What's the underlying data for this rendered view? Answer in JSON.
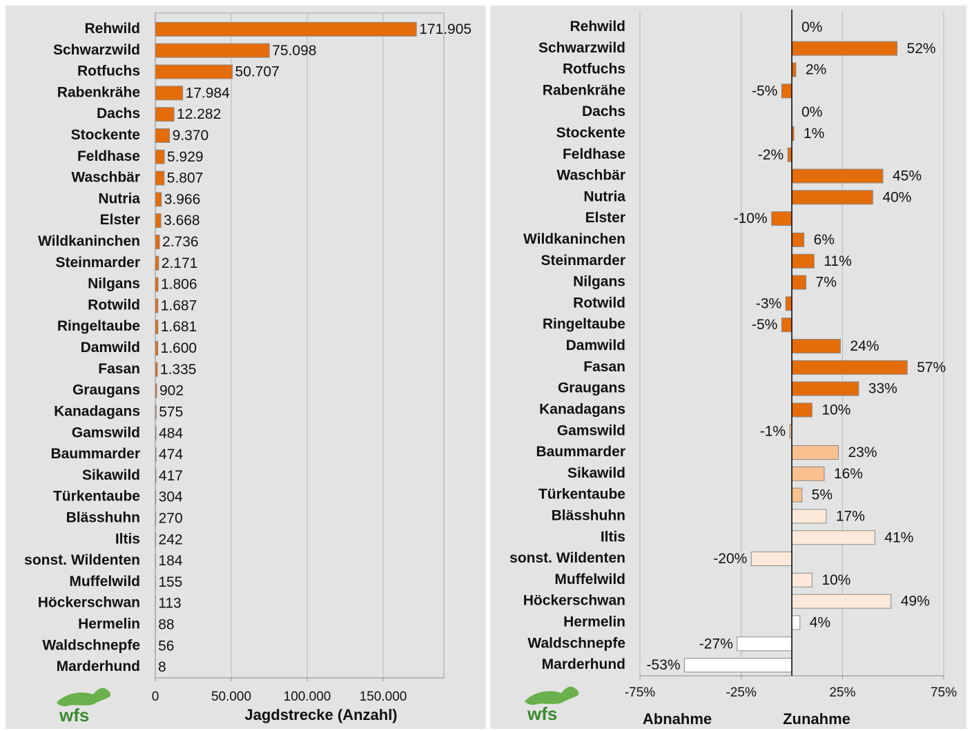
{
  "logo": "wfs",
  "chart_data": [
    {
      "type": "bar",
      "orientation": "horizontal",
      "categories": [
        "Rehwild",
        "Schwarzwild",
        "Rotfuchs",
        "Rabenkrähe",
        "Dachs",
        "Stockente",
        "Feldhase",
        "Waschbär",
        "Nutria",
        "Elster",
        "Wildkaninchen",
        "Steinmarder",
        "Nilgans",
        "Rotwild",
        "Ringeltaube",
        "Damwild",
        "Fasan",
        "Graugans",
        "Kanadagans",
        "Gamswild",
        "Baummarder",
        "Sikawild",
        "Türkentaube",
        "Blässhuhn",
        "Iltis",
        "sonst. Wildenten",
        "Muffelwild",
        "Höckerschwan",
        "Hermelin",
        "Waldschnepfe",
        "Marderhund"
      ],
      "values": [
        171905,
        75098,
        50707,
        17984,
        12282,
        9370,
        5929,
        5807,
        3966,
        3668,
        2736,
        2171,
        1806,
        1687,
        1681,
        1600,
        1335,
        902,
        575,
        484,
        474,
        417,
        304,
        270,
        242,
        184,
        155,
        113,
        88,
        56,
        8
      ],
      "value_labels": [
        "171.905",
        "75.098",
        "50.707",
        "17.984",
        "12.282",
        "9.370",
        "5.929",
        "5.807",
        "3.966",
        "3.668",
        "2.736",
        "2.171",
        "1.806",
        "1.687",
        "1.681",
        "1.600",
        "1.335",
        "902",
        "575",
        "484",
        "474",
        "417",
        "304",
        "270",
        "242",
        "184",
        "155",
        "113",
        "88",
        "56",
        "8"
      ],
      "color": "#e46c0a",
      "xlim": [
        0,
        190000
      ],
      "xticks": [
        0,
        {
          "value": 50000,
          "label": "50.000"
        },
        {
          "value": 100000,
          "label": "100.000"
        },
        {
          "value": 150000,
          "label": "150.000"
        }
      ],
      "xlabel": "Jagdstrecke (Anzahl)",
      "grid": true
    },
    {
      "type": "bar",
      "orientation": "horizontal",
      "categories": [
        "Rehwild",
        "Schwarzwild",
        "Rotfuchs",
        "Rabenkrähe",
        "Dachs",
        "Stockente",
        "Feldhase",
        "Waschbär",
        "Nutria",
        "Elster",
        "Wildkaninchen",
        "Steinmarder",
        "Nilgans",
        "Rotwild",
        "Ringeltaube",
        "Damwild",
        "Fasan",
        "Graugans",
        "Kanadagans",
        "Gamswild",
        "Baummarder",
        "Sikawild",
        "Türkentaube",
        "Blässhuhn",
        "Iltis",
        "sonst. Wildenten",
        "Muffelwild",
        "Höckerschwan",
        "Hermelin",
        "Waldschnepfe",
        "Marderhund"
      ],
      "values": [
        0,
        52,
        2,
        -5,
        0,
        1,
        -2,
        45,
        40,
        -10,
        6,
        11,
        7,
        -3,
        -5,
        24,
        57,
        33,
        10,
        -1,
        23,
        16,
        5,
        17,
        41,
        -20,
        10,
        49,
        4,
        -27,
        -53
      ],
      "value_labels": [
        "0%",
        "52%",
        "2%",
        "-5%",
        "0%",
        "1%",
        "-2%",
        "45%",
        "40%",
        "-10%",
        "6%",
        "11%",
        "7%",
        "-3%",
        "-5%",
        "24%",
        "57%",
        "33%",
        "10%",
        "-1%",
        "23%",
        "16%",
        "5%",
        "17%",
        "41%",
        "-20%",
        "10%",
        "49%",
        "4%",
        "-27%",
        "-53%"
      ],
      "colors": [
        "#e46c0a",
        "#e46c0a",
        "#e46c0a",
        "#e46c0a",
        "#e46c0a",
        "#e46c0a",
        "#e46c0a",
        "#e46c0a",
        "#e46c0a",
        "#e46c0a",
        "#e46c0a",
        "#e46c0a",
        "#e46c0a",
        "#e46c0a",
        "#e46c0a",
        "#e46c0a",
        "#e46c0a",
        "#e46c0a",
        "#e46c0a",
        "#fac090",
        "#fac090",
        "#fac090",
        "#fac090",
        "#fde9d9",
        "#fde9d9",
        "#fde9d9",
        "#fde9d9",
        "#fde9d9",
        "#ffffff",
        "#ffffff",
        "#ffffff"
      ],
      "xlim": [
        -75,
        75
      ],
      "xticks": [
        {
          "value": -75,
          "label": "-75%"
        },
        {
          "value": -25,
          "label": "-25%"
        },
        {
          "value": 25,
          "label": "25%"
        },
        {
          "value": 75,
          "label": "75%"
        }
      ],
      "annotations": [
        "Abnahme",
        "Zunahme"
      ],
      "grid": true
    }
  ]
}
